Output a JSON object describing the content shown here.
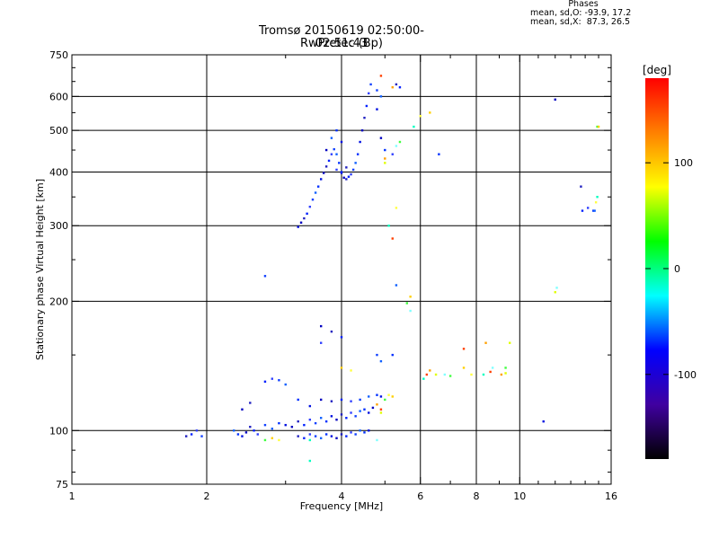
{
  "chart_data": {
    "type": "scatter",
    "title": "Tromsø 20150619 02:50:00-02:51:43",
    "subtitle": "RwPretec (Bp)",
    "xlabel": "Frequency [MHz]",
    "ylabel": "Stationary phase Virtual Height [km]",
    "x_scale": "log",
    "y_scale": "log",
    "xlim": [
      1,
      16
    ],
    "ylim": [
      75,
      750
    ],
    "x_ticks": [
      "1",
      "2",
      "4",
      "6",
      "8",
      "10",
      "16"
    ],
    "y_ticks": [
      "75",
      "100",
      "200",
      "300",
      "400",
      "500",
      "600",
      "750"
    ],
    "grid": true,
    "legend": {
      "title": "Phases",
      "lines": [
        "mean, sd,O: -93.9, 17.2",
        "mean, sd,X:  87.3, 26.5"
      ]
    },
    "colorbar": {
      "label": "[deg]",
      "range": [
        -180,
        180
      ],
      "ticks": [
        "100",
        "0",
        "-100"
      ],
      "colors": [
        "#ff0000",
        "#ff8000",
        "#ffff00",
        "#00ff00",
        "#00ffff",
        "#0000ff",
        "#4000a0",
        "#000000"
      ]
    },
    "series": [
      {
        "points": [
          [
            1.8,
            97
          ],
          [
            1.85,
            98
          ],
          [
            1.9,
            100
          ],
          [
            1.95,
            97
          ],
          [
            2.3,
            100
          ],
          [
            2.35,
            98
          ],
          [
            2.4,
            97
          ],
          [
            2.45,
            99
          ],
          [
            2.5,
            102
          ],
          [
            2.55,
            100
          ],
          [
            2.6,
            98
          ],
          [
            2.7,
            103
          ],
          [
            2.8,
            101
          ],
          [
            2.9,
            104
          ],
          [
            3.0,
            103
          ],
          [
            3.1,
            102
          ],
          [
            3.2,
            105
          ],
          [
            3.3,
            103
          ],
          [
            3.4,
            106
          ],
          [
            3.5,
            104
          ],
          [
            3.6,
            107
          ],
          [
            3.7,
            105
          ],
          [
            3.8,
            108
          ],
          [
            3.9,
            106
          ],
          [
            4.0,
            109
          ],
          [
            4.1,
            107
          ],
          [
            4.2,
            110
          ],
          [
            4.3,
            108
          ],
          [
            4.4,
            111
          ],
          [
            4.5,
            112
          ],
          [
            4.6,
            110
          ],
          [
            4.7,
            113
          ],
          [
            3.2,
            97
          ],
          [
            3.3,
            96
          ],
          [
            3.4,
            98
          ],
          [
            3.5,
            97
          ],
          [
            3.6,
            96
          ],
          [
            3.7,
            98
          ],
          [
            3.8,
            97
          ],
          [
            3.9,
            96
          ],
          [
            4.0,
            98
          ],
          [
            4.1,
            97
          ],
          [
            4.2,
            99
          ],
          [
            4.3,
            98
          ],
          [
            4.4,
            100
          ],
          [
            4.5,
            99
          ],
          [
            4.6,
            100
          ],
          [
            2.4,
            112
          ],
          [
            2.5,
            116
          ],
          [
            2.7,
            130
          ],
          [
            2.8,
            132
          ],
          [
            2.9,
            131
          ],
          [
            3.0,
            128
          ],
          [
            3.2,
            118
          ],
          [
            3.4,
            114
          ],
          [
            3.6,
            118
          ],
          [
            3.8,
            117
          ],
          [
            4.0,
            118
          ],
          [
            4.2,
            117
          ],
          [
            4.4,
            118
          ],
          [
            4.6,
            120
          ],
          [
            4.8,
            121
          ],
          [
            4.9,
            120
          ],
          [
            3.6,
            175
          ],
          [
            3.8,
            170
          ],
          [
            4.0,
            165
          ],
          [
            3.6,
            160
          ],
          [
            4.8,
            150
          ],
          [
            4.9,
            145
          ],
          [
            5.2,
            150
          ],
          [
            3.2,
            298
          ],
          [
            3.25,
            305
          ],
          [
            3.3,
            312
          ],
          [
            3.35,
            320
          ],
          [
            3.4,
            332
          ],
          [
            3.45,
            345
          ],
          [
            3.5,
            358
          ],
          [
            3.55,
            370
          ],
          [
            3.6,
            385
          ],
          [
            3.65,
            398
          ],
          [
            3.7,
            412
          ],
          [
            3.75,
            425
          ],
          [
            3.8,
            440
          ],
          [
            3.85,
            452
          ],
          [
            3.9,
            440
          ],
          [
            3.95,
            420
          ],
          [
            4.0,
            398
          ],
          [
            4.05,
            388
          ],
          [
            4.1,
            385
          ],
          [
            4.15,
            390
          ],
          [
            4.2,
            395
          ],
          [
            4.25,
            405
          ],
          [
            4.3,
            420
          ],
          [
            4.35,
            440
          ],
          [
            4.4,
            470
          ],
          [
            4.45,
            500
          ],
          [
            4.5,
            535
          ],
          [
            4.55,
            570
          ],
          [
            4.6,
            610
          ],
          [
            4.65,
            640
          ],
          [
            3.8,
            480
          ],
          [
            3.9,
            500
          ],
          [
            4.0,
            470
          ],
          [
            3.7,
            450
          ],
          [
            4.1,
            410
          ],
          [
            4.0,
            400
          ],
          [
            3.9,
            405
          ],
          [
            4.8,
            620
          ],
          [
            4.9,
            600
          ],
          [
            5.0,
            450
          ],
          [
            4.8,
            560
          ],
          [
            4.9,
            480
          ],
          [
            5.3,
            640
          ],
          [
            5.4,
            630
          ],
          [
            5.2,
            440
          ],
          [
            2.7,
            229
          ],
          [
            5.3,
            218
          ],
          [
            6.6,
            440
          ],
          [
            11.3,
            105
          ],
          [
            12.0,
            590
          ],
          [
            13.7,
            370
          ],
          [
            13.8,
            325
          ],
          [
            14.2,
            330
          ],
          [
            14.6,
            325
          ],
          [
            14.7,
            325
          ]
        ]
      },
      {
        "points": [
          [
            2.7,
            95
          ],
          [
            2.8,
            96
          ],
          [
            2.9,
            95
          ],
          [
            3.4,
            95
          ],
          [
            4.9,
            112
          ],
          [
            4.8,
            115
          ],
          [
            4.9,
            110
          ],
          [
            4.8,
            95
          ],
          [
            5.0,
            118
          ],
          [
            5.2,
            120
          ],
          [
            5.1,
            121
          ],
          [
            6.1,
            132
          ],
          [
            6.2,
            135
          ],
          [
            6.3,
            138
          ],
          [
            6.5,
            135
          ],
          [
            6.8,
            135
          ],
          [
            7.0,
            134
          ],
          [
            7.5,
            140
          ],
          [
            7.8,
            135
          ],
          [
            8.3,
            135
          ],
          [
            8.6,
            137
          ],
          [
            9.1,
            135
          ],
          [
            9.3,
            136
          ],
          [
            5.7,
            190
          ],
          [
            5.6,
            198
          ],
          [
            5.7,
            205
          ],
          [
            5.3,
            330
          ],
          [
            5.1,
            300
          ],
          [
            5.2,
            280
          ],
          [
            5.0,
            430
          ],
          [
            5.0,
            420
          ],
          [
            5.3,
            460
          ],
          [
            5.4,
            470
          ],
          [
            6.3,
            550
          ],
          [
            6.0,
            540
          ],
          [
            5.8,
            510
          ],
          [
            4.9,
            670
          ],
          [
            5.2,
            630
          ],
          [
            12.0,
            210
          ],
          [
            12.1,
            215
          ],
          [
            14.9,
            510
          ],
          [
            15.0,
            510
          ],
          [
            14.8,
            340
          ],
          [
            14.9,
            350
          ],
          [
            7.5,
            155
          ],
          [
            8.4,
            160
          ],
          [
            9.5,
            160
          ],
          [
            8.7,
            140
          ],
          [
            9.3,
            140
          ],
          [
            4.0,
            140
          ],
          [
            4.2,
            138
          ],
          [
            3.4,
            85
          ]
        ]
      }
    ]
  }
}
